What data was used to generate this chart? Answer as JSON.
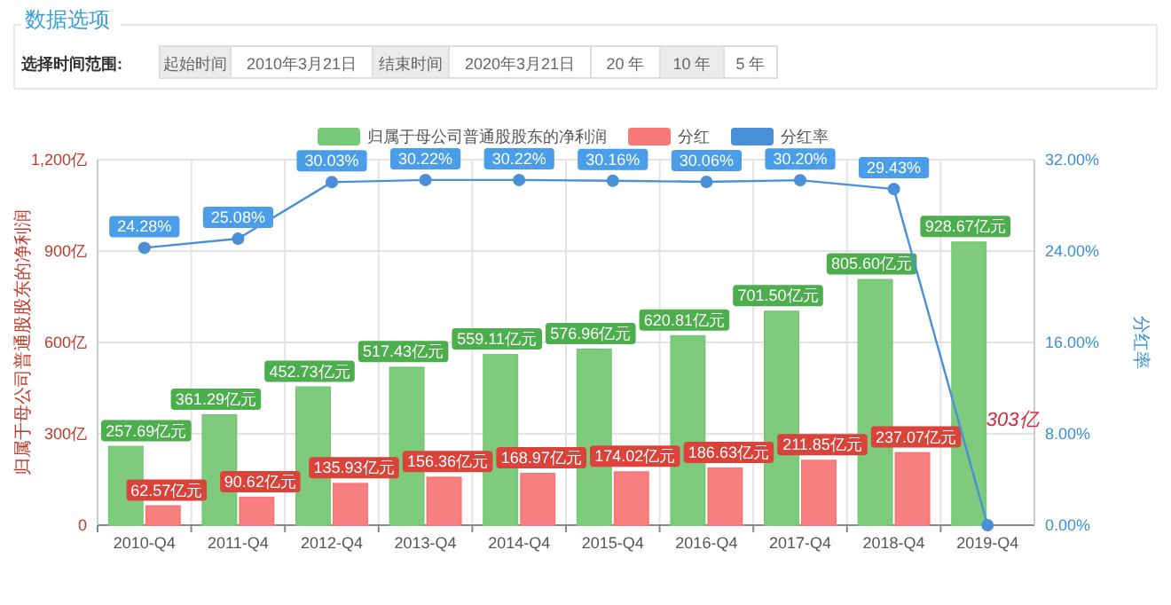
{
  "chart_data": {
    "type": "bar",
    "title": "数据选项",
    "annotations": [
      "选择时间范围:",
      "起始时间",
      "2010年3月21日",
      "结束时间",
      "2020年3月21日",
      "20 年",
      "10 年",
      "5 年",
      {
        "text": "303亿",
        "x": "2019-Q4",
        "y": 303
      }
    ],
    "categories": [
      "2010-Q4",
      "2011-Q4",
      "2012-Q4",
      "2013-Q4",
      "2014-Q4",
      "2015-Q4",
      "2016-Q4",
      "2017-Q4",
      "2018-Q4",
      "2019-Q4"
    ],
    "series": [
      {
        "name": "归属于母公司普通股股东的净利润",
        "color": "#77c877",
        "values": [
          257.69,
          361.29,
          452.73,
          517.43,
          559.11,
          576.96,
          620.81,
          701.5,
          805.6,
          928.67
        ],
        "value_labels": [
          "257.69亿元",
          "361.29亿元",
          "452.73亿元",
          "517.43亿元",
          "559.11亿元",
          "576.96亿元",
          "620.81亿元",
          "701.50亿元",
          "805.60亿元",
          "928.67亿元"
        ]
      },
      {
        "name": "分红",
        "color": "#f87878",
        "values": [
          62.57,
          90.62,
          135.93,
          156.36,
          168.97,
          174.02,
          186.63,
          211.85,
          237.07,
          null
        ],
        "value_labels": [
          "62.57亿元",
          "90.62亿元",
          "135.93亿元",
          "156.36亿元",
          "168.97亿元",
          "174.02亿元",
          "186.63亿元",
          "211.85亿元",
          "237.07亿元",
          null
        ]
      },
      {
        "name": "分红率",
        "color": "#4a90d9",
        "type": "line",
        "axis": "y2",
        "marker": "circle",
        "values": [
          24.28,
          25.08,
          30.03,
          30.22,
          30.22,
          30.16,
          30.06,
          30.2,
          29.43,
          0
        ],
        "value_labels": [
          "24.28%",
          "25.08%",
          "30.03%",
          "30.22%",
          "30.22%",
          "30.16%",
          "30.06%",
          "30.20%",
          "29.43%",
          null
        ]
      }
    ],
    "ylabel": "归属于母公司普通股股东的净利润",
    "y2label": "分红率",
    "ylim": [
      0,
      1200
    ],
    "yticks": [
      0,
      {
        "value": 300,
        "label": "300亿"
      },
      {
        "value": 600,
        "label": "600亿"
      },
      {
        "value": 900,
        "label": "900亿"
      },
      {
        "value": 1200,
        "label": "1,200亿"
      }
    ],
    "y2lim": [
      0,
      32
    ],
    "y2ticks": [
      {
        "value": 0,
        "label": "0.00%"
      },
      {
        "value": 8,
        "label": "8.00%"
      },
      {
        "value": 16,
        "label": "16.00%"
      },
      {
        "value": 24,
        "label": "24.00%"
      },
      {
        "value": 32,
        "label": "32.00%"
      }
    ],
    "grid": true,
    "legend": "top"
  }
}
